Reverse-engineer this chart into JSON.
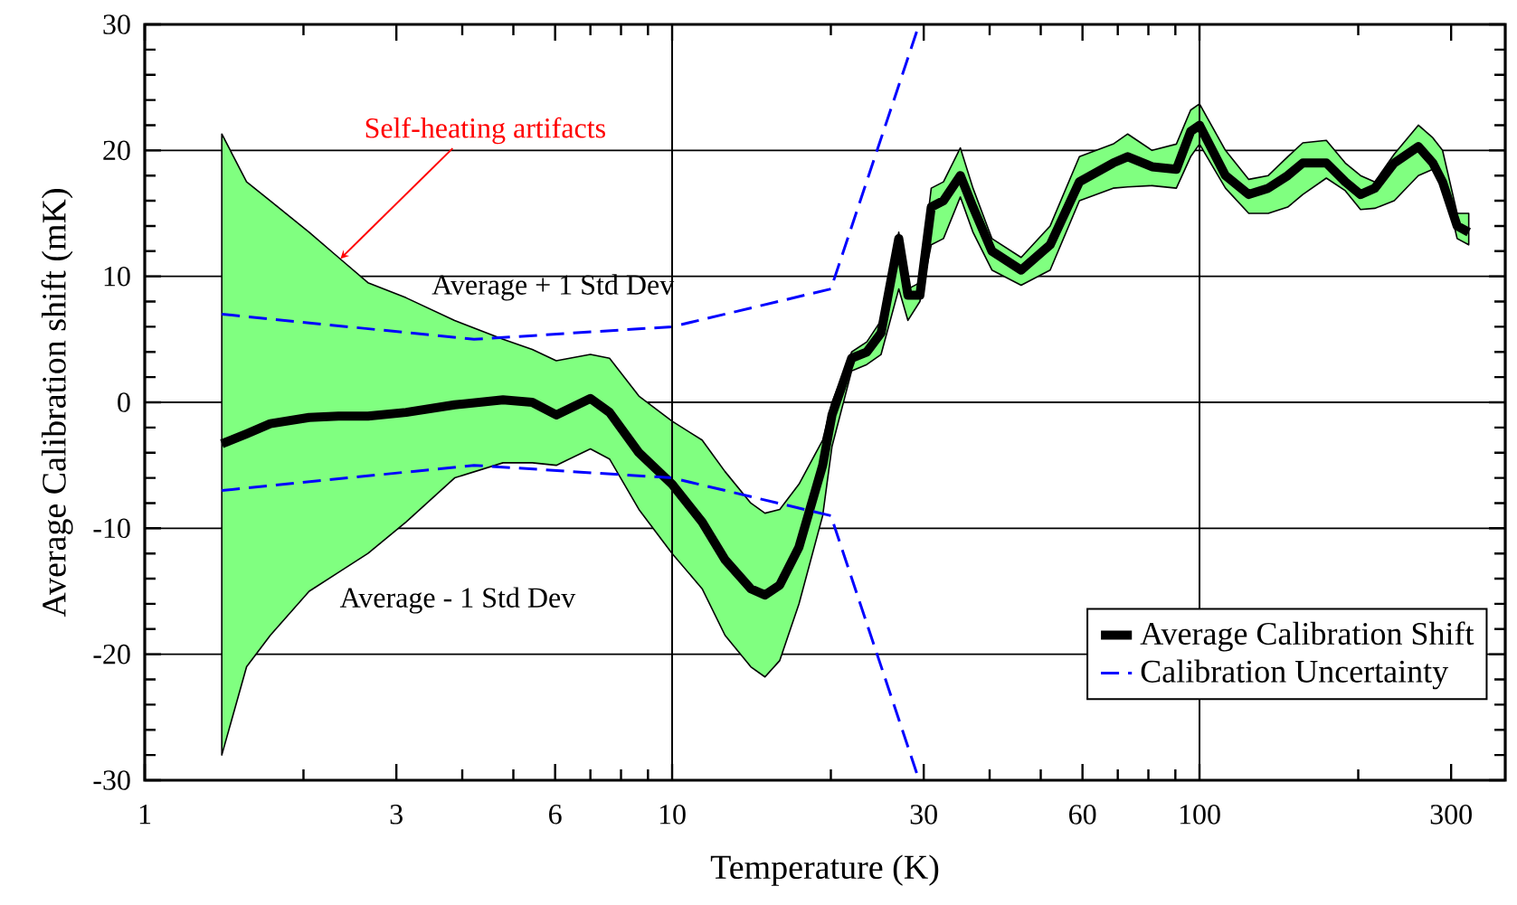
{
  "chart_data": {
    "type": "line",
    "xlabel": "Temperature (K)",
    "ylabel": "Average Calibration shift (mK)",
    "log": "x",
    "xlim": [
      1,
      380
    ],
    "ylim": [
      -30,
      30
    ],
    "xticks": [
      1,
      {
        "value": 2,
        "label": null
      },
      3,
      {
        "value": 4,
        "label": null
      },
      {
        "value": 5,
        "label": null
      },
      6,
      {
        "value": 7,
        "label": null
      },
      {
        "value": 8,
        "label": null
      },
      {
        "value": 9,
        "label": null
      },
      10,
      {
        "value": 20,
        "label": null
      },
      30,
      {
        "value": 40,
        "label": null
      },
      {
        "value": 50,
        "label": null
      },
      60,
      {
        "value": 70,
        "label": null
      },
      {
        "value": 80,
        "label": null
      },
      {
        "value": 90,
        "label": null
      },
      100,
      {
        "value": 200,
        "label": null
      },
      300
    ],
    "yticks": [
      -30,
      {
        "value": -28,
        "label": null
      },
      {
        "value": -26,
        "label": null
      },
      {
        "value": -24,
        "label": null
      },
      {
        "value": -22,
        "label": null
      },
      -20,
      {
        "value": -18,
        "label": null
      },
      {
        "value": -16,
        "label": null
      },
      {
        "value": -14,
        "label": null
      },
      {
        "value": -12,
        "label": null
      },
      -10,
      {
        "value": -8,
        "label": null
      },
      {
        "value": -6,
        "label": null
      },
      {
        "value": -4,
        "label": null
      },
      {
        "value": -2,
        "label": null
      },
      0,
      {
        "value": 2,
        "label": null
      },
      {
        "value": 4,
        "label": null
      },
      {
        "value": 6,
        "label": null
      },
      {
        "value": 8,
        "label": null
      },
      10,
      {
        "value": 12,
        "label": null
      },
      {
        "value": 14,
        "label": null
      },
      {
        "value": 16,
        "label": null
      },
      {
        "value": 18,
        "label": null
      },
      20,
      {
        "value": 22,
        "label": null
      },
      {
        "value": 24,
        "label": null
      },
      {
        "value": 26,
        "label": null
      },
      {
        "value": 28,
        "label": null
      },
      30
    ],
    "grid": "y",
    "legend": "bottom right",
    "marker": "none",
    "ref_lines": [
      {
        "axis": "x",
        "value": 10,
        "color": "#000000"
      },
      {
        "axis": "x",
        "value": 100,
        "color": "#000000"
      }
    ],
    "annotations": [
      {
        "text": "Self-heating artifacts",
        "x": 2.35,
        "y": 11.4
      },
      "Average + 1 Std Dev",
      "Average - 1 Std Dev"
    ],
    "series": [
      {
        "name": "Average Calibration Shift",
        "color": "#000000",
        "line_style": "solid",
        "x": [
          1.4,
          1.56,
          1.73,
          2.05,
          2.33,
          2.65,
          3.13,
          3.87,
          4.78,
          5.43,
          6.03,
          7.0,
          7.61,
          8.65,
          10,
          11.4,
          12.6,
          14.1,
          15.0,
          16.0,
          17.4,
          19.3,
          20.1,
          21.9,
          23.4,
          24.9,
          26.9,
          28.0,
          29.5,
          31.0,
          32.7,
          35.2,
          37.2,
          40.4,
          45.9,
          52.1,
          59.2,
          68.6,
          73.1,
          81.3,
          90.4,
          96.2,
          100,
          112,
          124,
          135,
          147,
          157,
          174,
          189,
          202,
          215,
          234,
          260,
          277,
          289,
          308,
          324
        ],
        "upper": [
          21.3,
          17.5,
          16,
          13.5,
          11.5,
          9.5,
          8.3,
          6.5,
          5,
          4.2,
          3.3,
          3.8,
          3.5,
          0.5,
          -1.5,
          -3,
          -5.5,
          -8,
          -8.8,
          -8.5,
          -6.5,
          -3,
          0,
          4,
          4.8,
          6.5,
          13.5,
          9,
          9.5,
          17,
          17.5,
          20.2,
          17,
          13,
          11.5,
          14,
          19.5,
          20.5,
          21.3,
          20,
          20.5,
          23.2,
          23.7,
          20,
          17.7,
          18,
          19.5,
          20.6,
          20.8,
          19,
          18,
          17.5,
          19.7,
          22,
          21,
          20,
          15,
          15
        ],
        "lower": [
          -28,
          -21,
          -18.5,
          -15,
          -13.5,
          -12,
          -9.5,
          -6,
          -4.8,
          -4.8,
          -5,
          -3.7,
          -4.5,
          -8.5,
          -12,
          -14.8,
          -18.5,
          -21,
          -21.8,
          -20.5,
          -16,
          -9,
          -3.5,
          2.5,
          3,
          3.8,
          9,
          6.5,
          8,
          12.5,
          13,
          16.3,
          13.5,
          10.5,
          9.3,
          10.5,
          16,
          17,
          17.1,
          17.2,
          17,
          19.5,
          20.5,
          17,
          15,
          15,
          15.5,
          16.5,
          17.8,
          16.8,
          15.3,
          15.4,
          16,
          18,
          18.5,
          18,
          13,
          12.5
        ],
        "values": [
          -3.3,
          -2.5,
          -1.7,
          -1.2,
          -1.1,
          -1.1,
          -0.8,
          -0.2,
          0.2,
          0,
          -1.0,
          0.3,
          -0.8,
          -4,
          -6.5,
          -9.5,
          -12.5,
          -14.8,
          -15.3,
          -14.5,
          -11.5,
          -5,
          -1,
          3.5,
          4,
          5.5,
          13,
          8.5,
          8.5,
          15.5,
          16,
          18,
          15.5,
          12,
          10.5,
          12.5,
          17.5,
          19,
          19.5,
          18.7,
          18.5,
          21.5,
          22,
          18,
          16.5,
          17,
          18,
          19,
          19,
          17.5,
          16.5,
          17,
          19,
          20.3,
          19,
          17.5,
          14,
          13.5
        ]
      },
      {
        "name": "Calibration Uncertainty",
        "color": "#0000ff",
        "line_style": "dashed",
        "x": [
          1.4,
          4.21,
          10,
          20,
          29.4
        ],
        "values": [
          7,
          5,
          6,
          9,
          30
        ]
      },
      {
        "color": "#0000ff",
        "line_style": "dashed",
        "x": [
          1.4,
          4.21,
          10,
          20,
          29.4
        ],
        "values": [
          -7,
          -5,
          -6,
          -9,
          -30
        ]
      }
    ]
  }
}
